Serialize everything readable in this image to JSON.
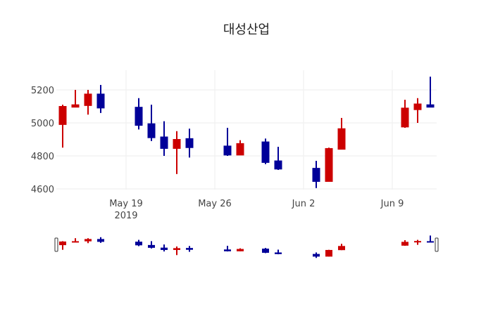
{
  "chart_data": {
    "type": "candlestick",
    "title": "대성산업",
    "xlabel": "",
    "ylabel": "",
    "ylim": [
      4590,
      5310
    ],
    "y_ticks": [
      4600,
      4800,
      5000,
      5200
    ],
    "x_ticks": [
      {
        "date": "2019-05-19",
        "label": "May 19",
        "sublabel": "2019"
      },
      {
        "date": "2019-05-26",
        "label": "May 26",
        "sublabel": ""
      },
      {
        "date": "2019-06-02",
        "label": "Jun 2",
        "sublabel": ""
      },
      {
        "date": "2019-06-09",
        "label": "Jun 9",
        "sublabel": ""
      }
    ],
    "xrange": [
      "2019-05-13T12:00",
      "2019-06-12T12:00"
    ],
    "grid": true,
    "increasing_color": "#cc0000",
    "decreasing_color": "#000099",
    "rangeslider": true,
    "candles": [
      {
        "date": "2019-05-14",
        "open": 4990,
        "high": 5110,
        "low": 4850,
        "close": 5100
      },
      {
        "date": "2019-05-15",
        "open": 5095,
        "high": 5200,
        "low": 5095,
        "close": 5110
      },
      {
        "date": "2019-05-16",
        "open": 5105,
        "high": 5200,
        "low": 5050,
        "close": 5175
      },
      {
        "date": "2019-05-17",
        "open": 5175,
        "high": 5230,
        "low": 5060,
        "close": 5090
      },
      {
        "date": "2019-05-20",
        "open": 5095,
        "high": 5150,
        "low": 4960,
        "close": 4985
      },
      {
        "date": "2019-05-21",
        "open": 4995,
        "high": 5110,
        "low": 4890,
        "close": 4910
      },
      {
        "date": "2019-05-22",
        "open": 4915,
        "high": 5010,
        "low": 4800,
        "close": 4845
      },
      {
        "date": "2019-05-23",
        "open": 4845,
        "high": 4950,
        "low": 4690,
        "close": 4900
      },
      {
        "date": "2019-05-24",
        "open": 4905,
        "high": 4965,
        "low": 4790,
        "close": 4850
      },
      {
        "date": "2019-05-27",
        "open": 4860,
        "high": 4970,
        "low": 4800,
        "close": 4805
      },
      {
        "date": "2019-05-28",
        "open": 4805,
        "high": 4895,
        "low": 4805,
        "close": 4875
      },
      {
        "date": "2019-05-30",
        "open": 4885,
        "high": 4905,
        "low": 4750,
        "close": 4760
      },
      {
        "date": "2019-05-31",
        "open": 4770,
        "high": 4855,
        "low": 4715,
        "close": 4720
      },
      {
        "date": "2019-06-03",
        "open": 4725,
        "high": 4770,
        "low": 4605,
        "close": 4645
      },
      {
        "date": "2019-06-04",
        "open": 4645,
        "high": 4850,
        "low": 4645,
        "close": 4845
      },
      {
        "date": "2019-06-05",
        "open": 4840,
        "high": 5030,
        "low": 4840,
        "close": 4965
      },
      {
        "date": "2019-06-10",
        "open": 4975,
        "high": 5140,
        "low": 4970,
        "close": 5090
      },
      {
        "date": "2019-06-11",
        "open": 5080,
        "high": 5150,
        "low": 5000,
        "close": 5115
      },
      {
        "date": "2019-06-12",
        "open": 5110,
        "high": 5280,
        "low": 5095,
        "close": 5095
      }
    ]
  }
}
